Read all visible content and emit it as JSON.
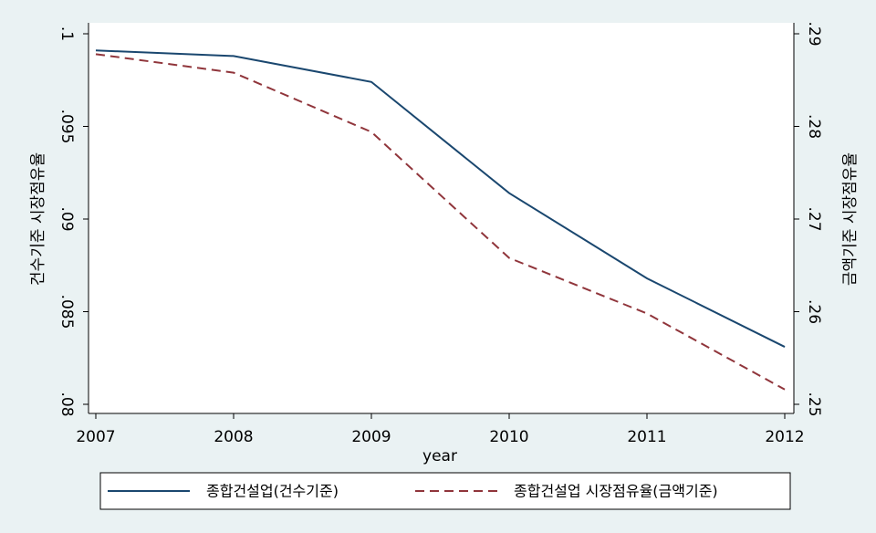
{
  "chart_data": {
    "type": "line",
    "x": [
      2007,
      2008,
      2009,
      2010,
      2011,
      2012
    ],
    "xlabel": "year",
    "ylabel": "건수기준 시장점유율",
    "y2label": "금액기준 시장점유율",
    "xlim": [
      2007,
      2012
    ],
    "xticks": [
      2007,
      2008,
      2009,
      2010,
      2011,
      2012
    ],
    "ylim": [
      0.08,
      0.1
    ],
    "yticks": [
      {
        "value": 0.08,
        "label": ".08"
      },
      {
        "value": 0.085,
        "label": ".085"
      },
      {
        "value": 0.09,
        "label": ".09"
      },
      {
        "value": 0.095,
        "label": ".095"
      },
      {
        "value": 0.1,
        "label": ".1"
      }
    ],
    "y2lim": [
      0.25,
      0.29
    ],
    "y2ticks": [
      {
        "value": 0.25,
        "label": ".25"
      },
      {
        "value": 0.26,
        "label": ".26"
      },
      {
        "value": 0.27,
        "label": ".27"
      },
      {
        "value": 0.28,
        "label": ".28"
      },
      {
        "value": 0.29,
        "label": ".29"
      }
    ],
    "series": [
      {
        "name": "종합건설업(건수기준)",
        "color": "#1a476f",
        "values": [
          0.0991,
          0.0988,
          0.0974,
          0.0914,
          0.0868,
          0.0831
        ]
      },
      {
        "name": "종합건설업 시장점유율(금액기준)",
        "color": "#90353b",
        "axis": "y2",
        "values": [
          0.2878,
          0.2858,
          0.2794,
          0.2658,
          0.2598,
          0.2516
        ]
      }
    ],
    "legend": "bottom"
  }
}
